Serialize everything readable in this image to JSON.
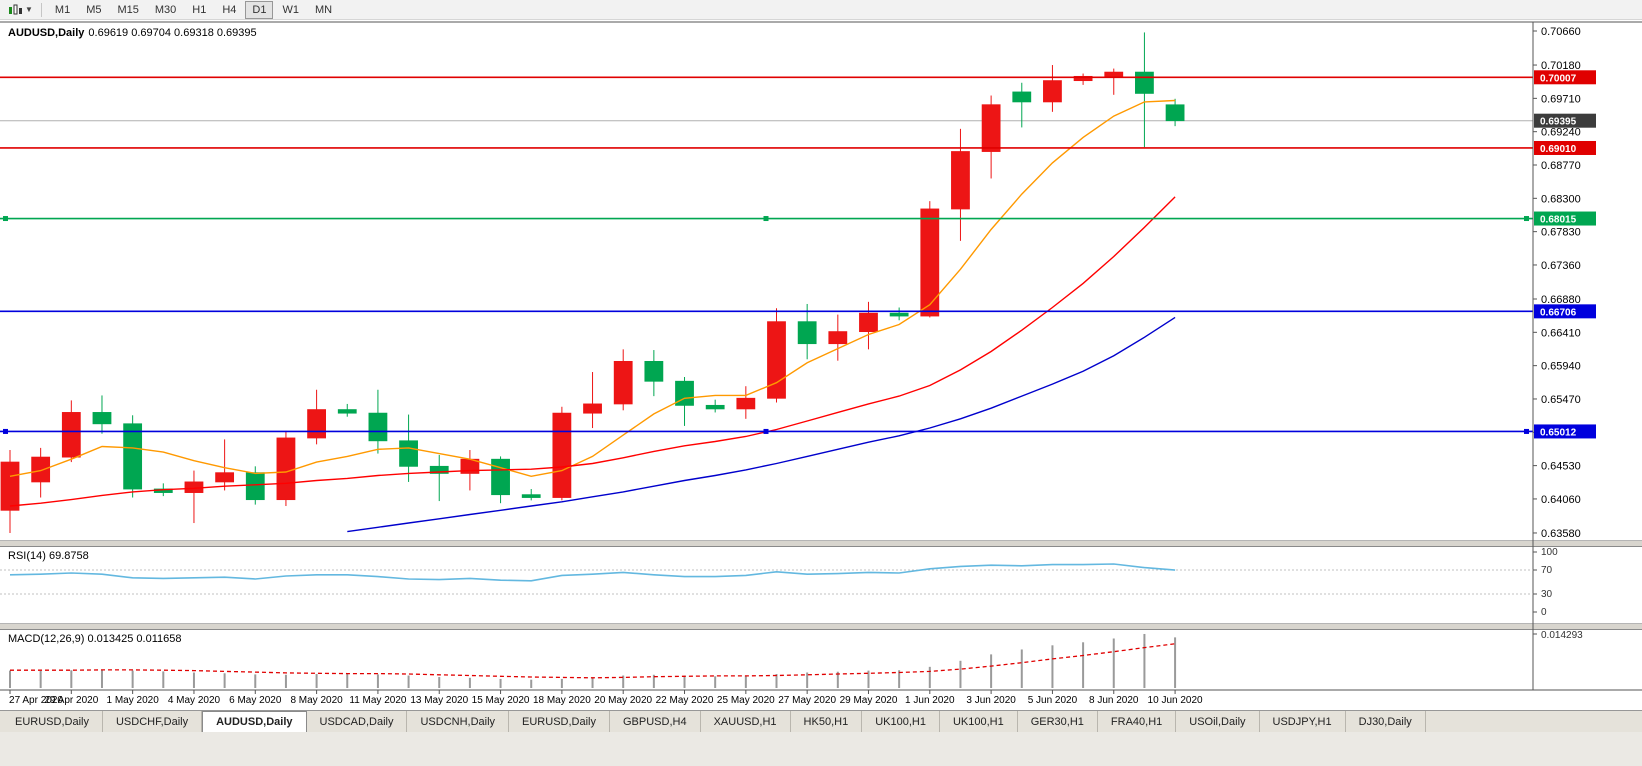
{
  "toolbar": {
    "chart_type_icon": "candlestick-chart-icon",
    "dropdown_icon": "chevron-down-icon",
    "timeframes": [
      "M1",
      "M5",
      "M15",
      "M30",
      "H1",
      "H4",
      "D1",
      "W1",
      "MN"
    ],
    "active_timeframe": "D1"
  },
  "main_chart": {
    "title_symbol": "AUDUSD,Daily",
    "title_ohlc": "0.69619 0.69704 0.69318 0.69395"
  },
  "rsi_panel": {
    "title": "RSI(14) 69.8758",
    "scale": [
      "100",
      "70",
      "30",
      "0"
    ],
    "levels": [
      70,
      30
    ],
    "line_color": "#63b8e0"
  },
  "macd_panel": {
    "title": "MACD(12,26,9) 0.013425 0.011658",
    "scale_max_label": "0.014293",
    "histogram_color": "#9a9a9a",
    "signal_color": "#e00000"
  },
  "price_axis": {
    "ticks": [
      "0.70660",
      "0.70180",
      "0.69710",
      "0.69240",
      "0.68770",
      "0.68300",
      "0.67830",
      "0.67360",
      "0.66880",
      "0.66410",
      "0.65940",
      "0.65470",
      "0.65000",
      "0.64530",
      "0.64060",
      "0.63580"
    ],
    "current_price_badge": {
      "value": "0.69395",
      "bg": "#3c3c3c",
      "fg": "#ffffff"
    }
  },
  "hlines": [
    {
      "value": 0.70007,
      "label": "0.70007",
      "color": "#e00000",
      "handles": false
    },
    {
      "value": 0.6901,
      "label": "0.69010",
      "color": "#e00000",
      "handles": false
    },
    {
      "value": 0.68015,
      "label": "0.68015",
      "color": "#00a651",
      "handles": true
    },
    {
      "value": 0.66706,
      "label": "0.66706",
      "color": "#0000dd",
      "handles": false
    },
    {
      "value": 0.65012,
      "label": "0.65012",
      "color": "#0000dd",
      "handles": true
    }
  ],
  "chart_data": {
    "type": "candlestick",
    "symbol": "AUDUSD",
    "timeframe": "Daily",
    "title": "AUDUSD,Daily 0.69619 0.69704 0.69318 0.69395",
    "ylim": [
      0.6352,
      0.7075
    ],
    "grid": false,
    "bull_color": "#ed1515",
    "bear_color": "#00a651",
    "current_price": 0.69395,
    "x_labels": [
      "27 Apr 2020",
      "29 Apr 2020",
      "1 May 2020",
      "4 May 2020",
      "6 May 2020",
      "8 May 2020",
      "11 May 2020",
      "13 May 2020",
      "15 May 2020",
      "18 May 2020",
      "20 May 2020",
      "22 May 2020",
      "25 May 2020",
      "27 May 2020",
      "29 May 2020",
      "1 Jun 2020",
      "3 Jun 2020",
      "5 Jun 2020",
      "8 Jun 2020",
      "10 Jun 2020"
    ],
    "dates": [
      "27 Apr 2020",
      "28 Apr 2020",
      "29 Apr 2020",
      "30 Apr 2020",
      "1 May 2020",
      "3 May 2020",
      "4 May 2020",
      "5 May 2020",
      "6 May 2020",
      "7 May 2020",
      "8 May 2020",
      "10 May 2020",
      "11 May 2020",
      "12 May 2020",
      "13 May 2020",
      "14 May 2020",
      "15 May 2020",
      "17 May 2020",
      "18 May 2020",
      "19 May 2020",
      "20 May 2020",
      "21 May 2020",
      "22 May 2020",
      "24 May 2020",
      "25 May 2020",
      "26 May 2020",
      "27 May 2020",
      "28 May 2020",
      "29 May 2020",
      "31 May 2020",
      "1 Jun 2020",
      "2 Jun 2020",
      "3 Jun 2020",
      "4 Jun 2020",
      "5 Jun 2020",
      "7 Jun 2020",
      "8 Jun 2020",
      "9 Jun 2020",
      "10 Jun 2020"
    ],
    "candles": [
      [
        0.639,
        0.6475,
        0.6358,
        0.6458
      ],
      [
        0.643,
        0.6478,
        0.6408,
        0.6465
      ],
      [
        0.6465,
        0.6545,
        0.6458,
        0.6528
      ],
      [
        0.6528,
        0.6552,
        0.6498,
        0.6512
      ],
      [
        0.6512,
        0.6524,
        0.6408,
        0.642
      ],
      [
        0.642,
        0.6428,
        0.641,
        0.6415
      ],
      [
        0.6415,
        0.6446,
        0.6372,
        0.643
      ],
      [
        0.643,
        0.649,
        0.6418,
        0.6443
      ],
      [
        0.6443,
        0.6452,
        0.6398,
        0.6405
      ],
      [
        0.6405,
        0.6502,
        0.6396,
        0.6492
      ],
      [
        0.6492,
        0.656,
        0.6483,
        0.6532
      ],
      [
        0.6532,
        0.654,
        0.6522,
        0.6527
      ],
      [
        0.6527,
        0.656,
        0.647,
        0.6488
      ],
      [
        0.6488,
        0.6525,
        0.643,
        0.6452
      ],
      [
        0.6452,
        0.6468,
        0.6403,
        0.6442
      ],
      [
        0.6442,
        0.6475,
        0.6418,
        0.6462
      ],
      [
        0.6462,
        0.6466,
        0.64,
        0.6412
      ],
      [
        0.6412,
        0.642,
        0.6404,
        0.6408
      ],
      [
        0.6408,
        0.6536,
        0.6404,
        0.6527
      ],
      [
        0.6527,
        0.6585,
        0.6506,
        0.654
      ],
      [
        0.654,
        0.6617,
        0.6531,
        0.66
      ],
      [
        0.66,
        0.6616,
        0.6551,
        0.6572
      ],
      [
        0.6572,
        0.6578,
        0.6509,
        0.6538
      ],
      [
        0.6538,
        0.6546,
        0.6528,
        0.6533
      ],
      [
        0.6533,
        0.6565,
        0.6519,
        0.6548
      ],
      [
        0.6548,
        0.6675,
        0.6542,
        0.6656
      ],
      [
        0.6656,
        0.6681,
        0.6603,
        0.6625
      ],
      [
        0.6625,
        0.6666,
        0.6601,
        0.6642
      ],
      [
        0.6642,
        0.6684,
        0.6617,
        0.6668
      ],
      [
        0.6668,
        0.6676,
        0.6658,
        0.6664
      ],
      [
        0.6664,
        0.6826,
        0.6662,
        0.6815
      ],
      [
        0.6815,
        0.6928,
        0.677,
        0.6896
      ],
      [
        0.6896,
        0.6975,
        0.6858,
        0.6962
      ],
      [
        0.698,
        0.6993,
        0.693,
        0.6966
      ],
      [
        0.6966,
        0.7018,
        0.6952,
        0.6996
      ],
      [
        0.6996,
        0.7006,
        0.699,
        0.7002
      ],
      [
        0.7002,
        0.7013,
        0.6976,
        0.7008
      ],
      [
        0.7008,
        0.7064,
        0.6902,
        0.6978
      ],
      [
        0.69619,
        0.69704,
        0.69318,
        0.69395
      ]
    ],
    "overlays": [
      {
        "name": "ma-fast",
        "color": "#ff9900",
        "values": [
          0.6438,
          0.6446,
          0.6462,
          0.648,
          0.6478,
          0.6472,
          0.646,
          0.645,
          0.6442,
          0.6444,
          0.6458,
          0.6466,
          0.6476,
          0.6478,
          0.647,
          0.6462,
          0.645,
          0.6438,
          0.6446,
          0.6466,
          0.6496,
          0.6526,
          0.6548,
          0.6552,
          0.6552,
          0.657,
          0.6598,
          0.6618,
          0.6638,
          0.6652,
          0.668,
          0.673,
          0.6786,
          0.6836,
          0.688,
          0.6916,
          0.6946,
          0.6966,
          0.6968
        ]
      },
      {
        "name": "ma-mid",
        "color": "#ff0000",
        "values": [
          0.6396,
          0.64,
          0.6405,
          0.6411,
          0.6416,
          0.6419,
          0.6421,
          0.6424,
          0.6426,
          0.6428,
          0.6432,
          0.6435,
          0.6439,
          0.6442,
          0.6444,
          0.6446,
          0.6447,
          0.6448,
          0.6451,
          0.6456,
          0.6464,
          0.6473,
          0.6481,
          0.6487,
          0.6494,
          0.6504,
          0.6516,
          0.6528,
          0.654,
          0.6551,
          0.6566,
          0.6588,
          0.6614,
          0.6644,
          0.6676,
          0.671,
          0.6748,
          0.6789,
          0.6832
        ]
      },
      {
        "name": "ma-slow",
        "color": "#0000cc",
        "values": [
          null,
          null,
          null,
          null,
          null,
          null,
          null,
          null,
          null,
          null,
          null,
          0.636,
          0.6366,
          0.6372,
          0.6378,
          0.6384,
          0.639,
          0.6396,
          0.6402,
          0.6409,
          0.6416,
          0.6424,
          0.6432,
          0.6439,
          0.6447,
          0.6456,
          0.6466,
          0.6476,
          0.6486,
          0.6495,
          0.6506,
          0.6519,
          0.6534,
          0.6551,
          0.6568,
          0.6586,
          0.6608,
          0.6634,
          0.6662
        ]
      }
    ],
    "rsi": {
      "label": "RSI(14)",
      "value": 69.8758,
      "range": [
        0,
        100
      ],
      "series": [
        62,
        63,
        65,
        63,
        57,
        56,
        57,
        58,
        55,
        60,
        62,
        62,
        59,
        55,
        54,
        56,
        53,
        52,
        61,
        63,
        66,
        62,
        59,
        59,
        61,
        67,
        63,
        64,
        66,
        65,
        72,
        76,
        78,
        77,
        79,
        79,
        80,
        74,
        69.8758
      ]
    },
    "macd": {
      "label": "MACD(12,26,9)",
      "macd_value": 0.013425,
      "signal_value": 0.011658,
      "scale_max": 0.014293,
      "histogram": [
        0.0046,
        0.0045,
        0.0047,
        0.0049,
        0.0046,
        0.0044,
        0.0041,
        0.0039,
        0.0036,
        0.0035,
        0.0037,
        0.0037,
        0.0036,
        0.0033,
        0.0029,
        0.0027,
        0.0024,
        0.0022,
        0.0024,
        0.0028,
        0.0033,
        0.0035,
        0.0033,
        0.0031,
        0.0031,
        0.0037,
        0.0041,
        0.0043,
        0.0046,
        0.0047,
        0.0056,
        0.0072,
        0.0089,
        0.0102,
        0.0113,
        0.0121,
        0.0131,
        0.0143,
        0.0134
      ],
      "signal": [
        0.0047,
        0.0047,
        0.0047,
        0.0048,
        0.0048,
        0.0047,
        0.0046,
        0.0044,
        0.0042,
        0.004,
        0.0039,
        0.0038,
        0.0038,
        0.0037,
        0.0035,
        0.0033,
        0.0031,
        0.0029,
        0.0028,
        0.0027,
        0.0028,
        0.003,
        0.0031,
        0.0032,
        0.0032,
        0.0033,
        0.0035,
        0.0037,
        0.0039,
        0.0041,
        0.0044,
        0.005,
        0.0058,
        0.0067,
        0.0077,
        0.0086,
        0.0096,
        0.0107,
        0.0117
      ]
    }
  },
  "tabs": {
    "items": [
      {
        "label": "EURUSD,Daily",
        "active": false
      },
      {
        "label": "USDCHF,Daily",
        "active": false
      },
      {
        "label": "AUDUSD,Daily",
        "active": true
      },
      {
        "label": "USDCAD,Daily",
        "active": false
      },
      {
        "label": "USDCNH,Daily",
        "active": false
      },
      {
        "label": "EURUSD,Daily",
        "active": false
      },
      {
        "label": "GBPUSD,H4",
        "active": false
      },
      {
        "label": "XAUUSD,H1",
        "active": false
      },
      {
        "label": "HK50,H1",
        "active": false
      },
      {
        "label": "UK100,H1",
        "active": false
      },
      {
        "label": "UK100,H1",
        "active": false
      },
      {
        "label": "GER30,H1",
        "active": false
      },
      {
        "label": "FRA40,H1",
        "active": false
      },
      {
        "label": "USOil,Daily",
        "active": false
      },
      {
        "label": "USDJPY,H1",
        "active": false
      },
      {
        "label": "DJ30,Daily",
        "active": false
      }
    ]
  }
}
